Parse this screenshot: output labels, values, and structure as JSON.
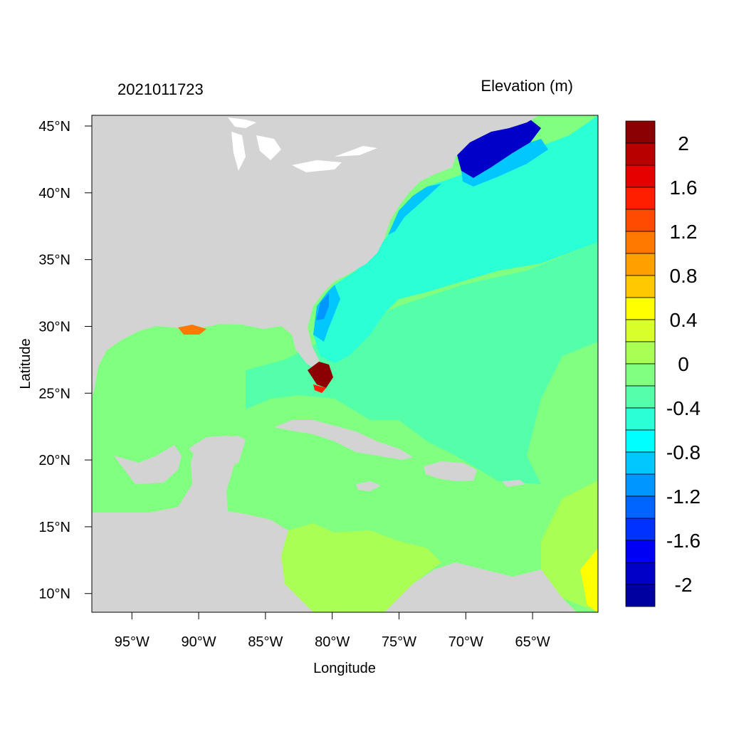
{
  "header": {
    "left_label": "2021011723",
    "right_label": "Elevation (m)"
  },
  "axes": {
    "xlabel": "Longitude",
    "ylabel": "Latitude",
    "x_ticks": [
      "95°W",
      "90°W",
      "85°W",
      "80°W",
      "75°W",
      "70°W",
      "65°W"
    ],
    "x_tick_values": [
      -95,
      -90,
      -85,
      -80,
      -75,
      -70,
      -65
    ],
    "y_ticks": [
      "10°N",
      "15°N",
      "20°N",
      "25°N",
      "30°N",
      "35°N",
      "40°N",
      "45°N"
    ],
    "y_tick_values": [
      10,
      15,
      20,
      25,
      30,
      35,
      40,
      45
    ],
    "lon_range": [
      -98,
      -60.1
    ],
    "lat_range": [
      8.6,
      45.8
    ]
  },
  "colorbar": {
    "labels": [
      "2",
      "1.6",
      "1.2",
      "0.8",
      "0.4",
      "0",
      "-0.4",
      "-0.8",
      "-1.2",
      "-1.6",
      "-2"
    ],
    "colors": [
      "#8b0000",
      "#b90000",
      "#e60000",
      "#ff1e00",
      "#ff4b00",
      "#ff7800",
      "#ffa000",
      "#ffc800",
      "#ffff00",
      "#d8ff2a",
      "#aaff55",
      "#80ff80",
      "#55ffaa",
      "#2affd5",
      "#00ffff",
      "#00c8ff",
      "#0096ff",
      "#0064ff",
      "#0032ff",
      "#0000f5",
      "#0000c8",
      "#0000a0"
    ]
  },
  "map_colors": {
    "land": "#d3d3d3",
    "water_zero": "#80ff80",
    "water_neg_02": "#55ffaa",
    "water_neg_04": "#2affd5",
    "water_neg_08": "#00c8ff",
    "water_neg_12": "#0096ff",
    "water_neg_20": "#0000c8",
    "water_pos_02": "#aaff55",
    "water_pos_04": "#d8ff2a",
    "water_pos_06": "#ffff00",
    "water_pos_max": "#8b0000",
    "lakes": "#ffffff"
  }
}
